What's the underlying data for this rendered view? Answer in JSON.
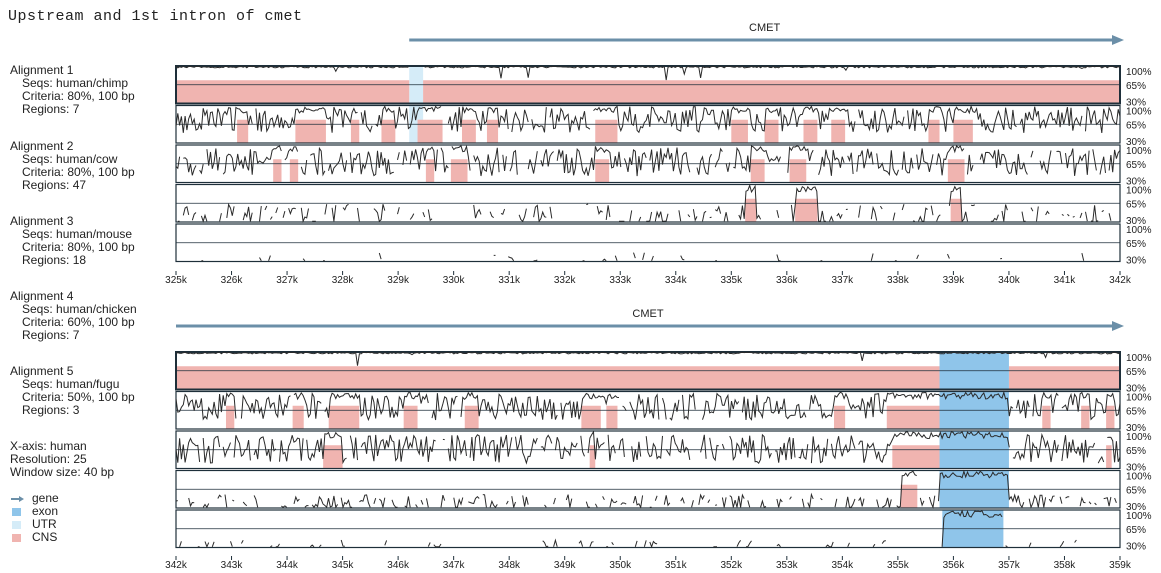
{
  "title": "Upstream and 1st intron of cmet",
  "alignments": [
    {
      "title": "Alignment 1",
      "seqs": "Seqs: human/chimp",
      "criteria": "Criteria: 80%, 100 bp",
      "regions": "Regions: 7"
    },
    {
      "title": "Alignment 2",
      "seqs": "Seqs: human/cow",
      "criteria": "Criteria: 80%, 100 bp",
      "regions": "Regions: 47"
    },
    {
      "title": "Alignment 3",
      "seqs": "Seqs: human/mouse",
      "criteria": "Criteria: 80%, 100 bp",
      "regions": "Regions: 18"
    },
    {
      "title": "Alignment 4",
      "seqs": "Seqs: human/chicken",
      "criteria": "Criteria: 60%, 100 bp",
      "regions": "Regions: 7"
    },
    {
      "title": "Alignment 5",
      "seqs": "Seqs: human/fugu",
      "criteria": "Criteria: 50%, 100 bp",
      "regions": "Regions: 3"
    }
  ],
  "xinfo": {
    "axis": "X-axis: human",
    "resolution": "Resolution: 25",
    "window": "Window size: 40 bp"
  },
  "legend": [
    {
      "label": "gene",
      "icon": "gene-arrow-icon",
      "color": "#6b8fa8"
    },
    {
      "label": "exon",
      "icon": "exon-swatch",
      "color": "#8fc5ea"
    },
    {
      "label": "UTR",
      "icon": "utr-swatch",
      "color": "#d5ecf8"
    },
    {
      "label": "CNS",
      "icon": "cns-swatch",
      "color": "#f0b4b0"
    }
  ],
  "colors": {
    "cns": "#f0b4b0",
    "exon": "#8fc5ea",
    "utr": "#d5ecf8",
    "gene": "#6b8fa8",
    "line": "#2a2a2a",
    "frame": "#1e2f3a"
  },
  "panels": [
    {
      "gene_label": "CMET",
      "gene_start": 329.2,
      "x_start": 325,
      "x_end": 342,
      "ticks": [
        "325k",
        "326k",
        "327k",
        "328k",
        "329k",
        "330k",
        "331k",
        "332k",
        "333k",
        "334k",
        "335k",
        "336k",
        "337k",
        "338k",
        "339k",
        "340k",
        "341k",
        "342k"
      ],
      "tracks": [
        {
          "base": 0.97,
          "amp": 0.05,
          "density": 0.04,
          "cns": [
            [
              325.0,
              329.2
            ],
            [
              329.45,
              342.0
            ]
          ],
          "exon": [],
          "utr": [
            [
              329.2,
              329.45
            ]
          ]
        },
        {
          "base": 0.62,
          "amp": 0.35,
          "density": 0.9,
          "cns": [
            [
              326.1,
              326.3
            ],
            [
              327.15,
              327.7
            ],
            [
              328.15,
              328.3
            ],
            [
              328.7,
              328.95
            ],
            [
              329.35,
              329.8
            ],
            [
              330.15,
              330.4
            ],
            [
              330.6,
              330.8
            ],
            [
              332.55,
              332.95
            ],
            [
              335.0,
              335.3
            ],
            [
              335.6,
              335.85
            ],
            [
              336.3,
              336.55
            ],
            [
              336.8,
              337.05
            ],
            [
              338.55,
              338.75
            ],
            [
              339.0,
              339.35
            ]
          ],
          "exon": [],
          "utr": [
            [
              329.2,
              329.45
            ]
          ]
        },
        {
          "base": 0.55,
          "amp": 0.38,
          "density": 0.85,
          "cns": [
            [
              326.75,
              326.9
            ],
            [
              327.05,
              327.2
            ],
            [
              329.5,
              329.65
            ],
            [
              329.95,
              330.25
            ],
            [
              332.55,
              332.8
            ],
            [
              335.35,
              335.6
            ],
            [
              336.05,
              336.35
            ],
            [
              338.9,
              339.2
            ]
          ],
          "exon": [],
          "utr": []
        },
        {
          "base": 0.18,
          "amp": 0.3,
          "density": 0.55,
          "cns": [
            [
              335.25,
              335.45
            ],
            [
              336.15,
              336.55
            ],
            [
              338.95,
              339.15
            ]
          ],
          "exon": [],
          "utr": []
        },
        {
          "base": 0.04,
          "amp": 0.2,
          "density": 0.2,
          "cns": [],
          "exon": [],
          "utr": []
        }
      ]
    },
    {
      "gene_label": "CMET",
      "gene_start": 342,
      "x_start": 342,
      "x_end": 359,
      "ticks": [
        "342k",
        "343k",
        "344k",
        "345k",
        "346k",
        "347k",
        "348k",
        "349k",
        "350k",
        "351k",
        "352k",
        "353k",
        "354k",
        "355k",
        "356k",
        "357k",
        "358k",
        "359k"
      ],
      "tracks": [
        {
          "base": 0.96,
          "amp": 0.05,
          "density": 0.04,
          "cns": [
            [
              342.0,
              355.75
            ],
            [
              357.0,
              359.0
            ]
          ],
          "exon": [
            [
              355.75,
              357.0
            ]
          ],
          "utr": []
        },
        {
          "base": 0.6,
          "amp": 0.36,
          "density": 0.9,
          "cns": [
            [
              342.9,
              343.05
            ],
            [
              344.1,
              344.3
            ],
            [
              344.75,
              345.3
            ],
            [
              346.1,
              346.35
            ],
            [
              347.2,
              347.45
            ],
            [
              349.3,
              349.65
            ],
            [
              349.75,
              349.95
            ],
            [
              353.85,
              354.05
            ],
            [
              354.8,
              355.75
            ],
            [
              357.6,
              357.75
            ],
            [
              358.3,
              358.45
            ],
            [
              358.75,
              358.9
            ]
          ],
          "exon": [
            [
              355.75,
              357.0
            ]
          ],
          "utr": []
        },
        {
          "base": 0.52,
          "amp": 0.38,
          "density": 0.85,
          "cns": [
            [
              344.65,
              345.0
            ],
            [
              349.45,
              349.55
            ],
            [
              354.9,
              355.75
            ],
            [
              358.75,
              358.85
            ]
          ],
          "exon": [
            [
              355.75,
              357.0
            ]
          ],
          "utr": []
        },
        {
          "base": 0.14,
          "amp": 0.22,
          "density": 0.6,
          "cns": [
            [
              355.05,
              355.35
            ]
          ],
          "exon": [
            [
              355.75,
              357.0
            ]
          ],
          "utr": []
        },
        {
          "base": 0.05,
          "amp": 0.15,
          "density": 0.3,
          "cns": [],
          "exon": [
            [
              355.8,
              356.9
            ]
          ],
          "utr": []
        }
      ]
    }
  ],
  "row_labels": [
    "100%",
    "65%",
    "30%"
  ]
}
